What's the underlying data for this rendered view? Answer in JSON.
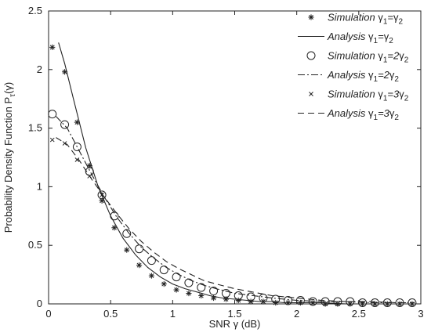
{
  "chart_data": {
    "type": "line",
    "xlabel": "SNR γ (dB)",
    "ylabel": "Probability Density Function Pτ(γ)",
    "ylabel_parts": [
      "Probability Density Function P",
      "τ",
      "(γ)"
    ],
    "xlim": [
      0,
      3
    ],
    "ylim": [
      0,
      2.5
    ],
    "xticks": [
      0,
      0.5,
      1,
      1.5,
      2,
      2.5,
      3
    ],
    "xtick_labels": [
      "0",
      "0.5",
      "1",
      "1.5",
      "2",
      "2.5",
      "3"
    ],
    "yticks": [
      0,
      0.5,
      1,
      1.5,
      2,
      2.5
    ],
    "ytick_labels": [
      "0",
      "0.5",
      "1",
      "1.5",
      "2",
      "2.5"
    ],
    "grid": false,
    "legend_position": "top-right",
    "series": [
      {
        "name": "Simulation γ1=γ2",
        "label_parts": [
          "Simulation ",
          "γ",
          "1",
          "=",
          "γ",
          "2"
        ],
        "kind": "markers",
        "marker": "star",
        "x": [
          0.03,
          0.13,
          0.23,
          0.33,
          0.43,
          0.53,
          0.63,
          0.73,
          0.83,
          0.93,
          1.03,
          1.13,
          1.23,
          1.33,
          1.43,
          1.53,
          1.63,
          1.73,
          1.83,
          1.93,
          2.03,
          2.13,
          2.23,
          2.33,
          2.43,
          2.53,
          2.63,
          2.73,
          2.83,
          2.93
        ],
        "y": [
          2.19,
          1.98,
          1.55,
          1.18,
          0.88,
          0.65,
          0.46,
          0.33,
          0.24,
          0.17,
          0.12,
          0.09,
          0.07,
          0.05,
          0.04,
          0.03,
          0.02,
          0.02,
          0.01,
          0.01,
          0.01,
          0.01,
          0.0,
          0.0,
          0.0,
          0.0,
          0.0,
          0.0,
          0.0,
          0.0
        ]
      },
      {
        "name": "Analysis γ1=γ2",
        "label_parts": [
          "Analysis ",
          "γ",
          "1",
          "=",
          "γ",
          "2"
        ],
        "kind": "line",
        "dash": "",
        "x": [
          0.08,
          0.13,
          0.2,
          0.3,
          0.4,
          0.5,
          0.6,
          0.7,
          0.8,
          0.9,
          1.0,
          1.1,
          1.2,
          1.3,
          1.4,
          1.5,
          1.6,
          1.7,
          1.8,
          1.9,
          2.0,
          2.2,
          2.4,
          2.6,
          2.8,
          2.95
        ],
        "y": [
          2.23,
          2.05,
          1.75,
          1.33,
          1.0,
          0.75,
          0.56,
          0.42,
          0.31,
          0.23,
          0.17,
          0.13,
          0.1,
          0.07,
          0.05,
          0.04,
          0.03,
          0.02,
          0.02,
          0.01,
          0.01,
          0.01,
          0.0,
          0.0,
          0.0,
          0.0
        ]
      },
      {
        "name": "Simulation γ1=2γ2",
        "label_parts": [
          "Simulation ",
          "γ",
          "1",
          "=2",
          "γ",
          "2"
        ],
        "kind": "markers",
        "marker": "circle",
        "x": [
          0.03,
          0.13,
          0.23,
          0.33,
          0.43,
          0.53,
          0.63,
          0.73,
          0.83,
          0.93,
          1.03,
          1.13,
          1.23,
          1.33,
          1.43,
          1.53,
          1.63,
          1.73,
          1.83,
          1.93,
          2.03,
          2.13,
          2.23,
          2.33,
          2.43,
          2.53,
          2.63,
          2.73,
          2.83,
          2.93
        ],
        "y": [
          1.62,
          1.53,
          1.34,
          1.13,
          0.93,
          0.75,
          0.6,
          0.47,
          0.37,
          0.29,
          0.23,
          0.18,
          0.14,
          0.11,
          0.09,
          0.07,
          0.06,
          0.05,
          0.04,
          0.03,
          0.03,
          0.02,
          0.02,
          0.02,
          0.02,
          0.01,
          0.01,
          0.01,
          0.01,
          0.01
        ]
      },
      {
        "name": "Analysis γ1=2γ2",
        "label_parts": [
          "Analysis ",
          "γ",
          "1",
          "=2",
          "γ",
          "2"
        ],
        "kind": "line",
        "dash": "9 3 2 3",
        "x": [
          0.06,
          0.15,
          0.25,
          0.35,
          0.45,
          0.55,
          0.65,
          0.75,
          0.85,
          0.95,
          1.05,
          1.15,
          1.25,
          1.35,
          1.5,
          1.65,
          1.8,
          2.0,
          2.2,
          2.4,
          2.6,
          2.8,
          2.95
        ],
        "y": [
          1.6,
          1.5,
          1.3,
          1.1,
          0.91,
          0.74,
          0.6,
          0.48,
          0.39,
          0.31,
          0.25,
          0.2,
          0.16,
          0.13,
          0.09,
          0.07,
          0.05,
          0.03,
          0.02,
          0.02,
          0.01,
          0.01,
          0.01
        ]
      },
      {
        "name": "Simulation γ1=3γ2",
        "label_parts": [
          "Simulation ",
          "γ",
          "1",
          "=3",
          "γ",
          "2"
        ],
        "kind": "markers",
        "marker": "x",
        "x": [
          0.03,
          0.13,
          0.23,
          0.33,
          0.43
        ],
        "y": [
          1.4,
          1.37,
          1.23,
          1.09,
          0.93
        ]
      },
      {
        "name": "Analysis γ1=3γ2",
        "label_parts": [
          "Analysis ",
          "γ",
          "1",
          "=3",
          "γ",
          "2"
        ],
        "kind": "line",
        "dash": "8 5",
        "x": [
          0.06,
          0.15,
          0.25,
          0.35,
          0.45,
          0.55,
          0.65,
          0.75,
          0.85,
          0.95,
          1.05,
          1.15,
          1.25,
          1.35,
          1.5,
          1.65,
          1.8,
          2.0,
          2.2,
          2.4,
          2.6,
          2.8,
          2.95
        ],
        "y": [
          1.42,
          1.36,
          1.22,
          1.06,
          0.91,
          0.77,
          0.64,
          0.53,
          0.44,
          0.36,
          0.3,
          0.25,
          0.2,
          0.17,
          0.13,
          0.1,
          0.07,
          0.05,
          0.03,
          0.02,
          0.02,
          0.01,
          0.01
        ]
      }
    ]
  }
}
